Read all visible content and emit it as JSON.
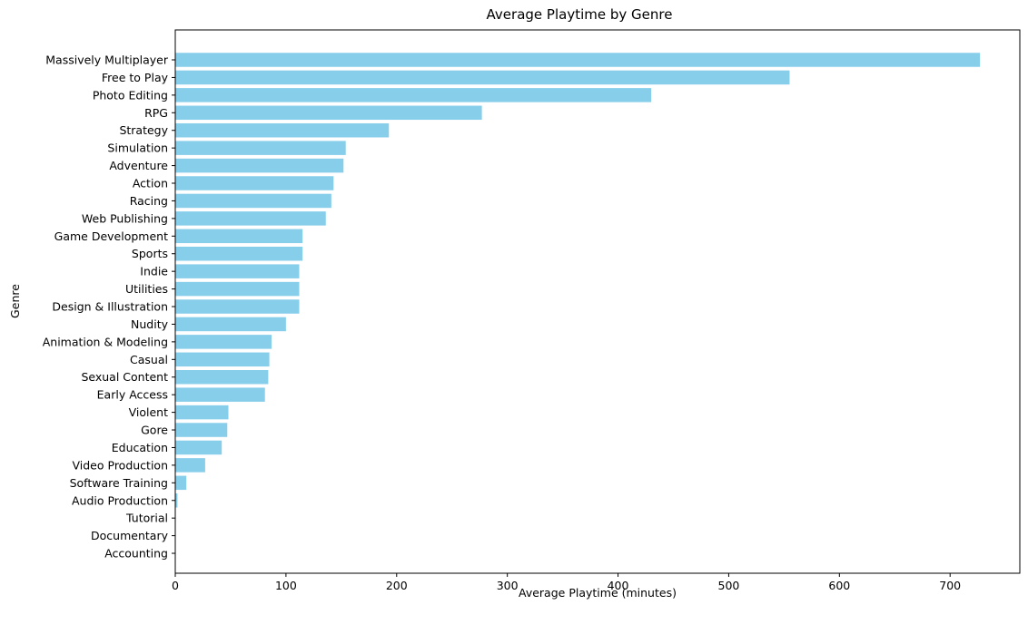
{
  "chart_data": {
    "type": "bar",
    "orientation": "horizontal",
    "title": "Average Playtime by Genre",
    "xlabel": "Average Playtime (minutes)",
    "ylabel": "Genre",
    "xlim": [
      0,
      763
    ],
    "xticks": [
      0,
      100,
      200,
      300,
      400,
      500,
      600,
      700
    ],
    "grid": false,
    "bar_color": "#87CEEB",
    "categories": [
      "Massively Multiplayer",
      "Free to Play",
      "Photo Editing",
      "RPG",
      "Strategy",
      "Simulation",
      "Adventure",
      "Action",
      "Racing",
      "Web Publishing",
      "Game Development",
      "Sports",
      "Indie",
      "Utilities",
      "Design & Illustration",
      "Nudity",
      "Animation & Modeling",
      "Casual",
      "Sexual Content",
      "Early Access",
      "Violent",
      "Gore",
      "Education",
      "Video Production",
      "Software Training",
      "Audio Production",
      "Tutorial",
      "Documentary",
      "Accounting"
    ],
    "values": [
      727,
      555,
      430,
      277,
      193,
      154,
      152,
      143,
      141,
      136,
      115,
      115,
      112,
      112,
      112,
      100,
      87,
      85,
      84,
      81,
      48,
      47,
      42,
      27,
      10,
      2,
      0,
      0,
      0
    ]
  }
}
